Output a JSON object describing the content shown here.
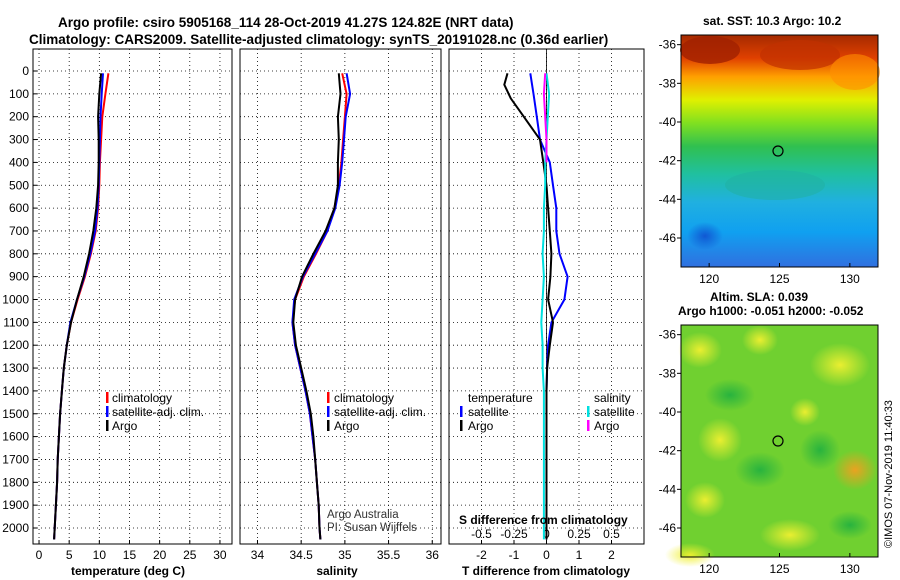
{
  "header": {
    "title_line1": "Argo profile: csiro 5905168_114 28-Oct-2019 41.27S 124.82E (NRT data)",
    "title_line2": "Climatology: CARS2009. Satellite-adjusted climatology: synTS_20191028.nc (0.36d earlier)"
  },
  "colors": {
    "climatology": "#ff0000",
    "satellite": "#0000ff",
    "argo": "#000000",
    "sat_salinity": "#00e0e0",
    "argo_salinity": "#ff00ff"
  },
  "chart_data": [
    {
      "id": "temperature",
      "type": "line",
      "xlabel": "temperature (deg C)",
      "ylabel": "",
      "xlim": [
        -1,
        32
      ],
      "ylim": [
        2070,
        0
      ],
      "xticks": [
        0,
        5,
        10,
        15,
        20,
        25,
        30
      ],
      "yticks": [
        0,
        100,
        200,
        300,
        400,
        500,
        600,
        700,
        800,
        900,
        1000,
        1100,
        1200,
        1300,
        1400,
        1500,
        1600,
        1700,
        1800,
        1900,
        2000
      ],
      "legend": [
        "climatology",
        "satellite-adj. clim.",
        "Argo"
      ],
      "legend_position": "lower-right",
      "series": [
        {
          "name": "climatology",
          "color": "#ff0000",
          "points": [
            [
              11.5,
              10
            ],
            [
              11.0,
              100
            ],
            [
              10.5,
              200
            ],
            [
              10.3,
              300
            ],
            [
              10.1,
              400
            ],
            [
              10.0,
              500
            ],
            [
              9.8,
              600
            ],
            [
              9.4,
              700
            ],
            [
              8.6,
              800
            ],
            [
              7.6,
              900
            ],
            [
              6.4,
              1000
            ],
            [
              5.3,
              1100
            ],
            [
              4.6,
              1200
            ],
            [
              4.1,
              1300
            ],
            [
              3.8,
              1400
            ],
            [
              3.5,
              1500
            ],
            [
              3.3,
              1600
            ],
            [
              3.1,
              1700
            ],
            [
              3.0,
              1800
            ],
            [
              2.8,
              1900
            ],
            [
              2.6,
              2000
            ],
            [
              2.5,
              2050
            ]
          ]
        },
        {
          "name": "satellite-adj. clim.",
          "color": "#0000ff",
          "points": [
            [
              10.6,
              10
            ],
            [
              10.4,
              100
            ],
            [
              10.2,
              200
            ],
            [
              10.1,
              300
            ],
            [
              10.0,
              400
            ],
            [
              9.9,
              500
            ],
            [
              9.7,
              600
            ],
            [
              9.3,
              700
            ],
            [
              8.5,
              800
            ],
            [
              7.5,
              900
            ],
            [
              6.3,
              1000
            ],
            [
              5.2,
              1100
            ],
            [
              4.6,
              1200
            ],
            [
              4.1,
              1300
            ],
            [
              3.8,
              1400
            ],
            [
              3.5,
              1500
            ],
            [
              3.3,
              1600
            ],
            [
              3.1,
              1700
            ],
            [
              3.0,
              1800
            ],
            [
              2.8,
              1900
            ],
            [
              2.6,
              2000
            ],
            [
              2.5,
              2050
            ]
          ]
        },
        {
          "name": "Argo",
          "color": "#000000",
          "points": [
            [
              10.3,
              10
            ],
            [
              10.0,
              100
            ],
            [
              9.8,
              200
            ],
            [
              9.9,
              300
            ],
            [
              9.9,
              400
            ],
            [
              9.8,
              500
            ],
            [
              9.5,
              600
            ],
            [
              9.0,
              700
            ],
            [
              8.3,
              800
            ],
            [
              7.4,
              900
            ],
            [
              6.3,
              1000
            ],
            [
              5.3,
              1100
            ],
            [
              4.6,
              1200
            ],
            [
              4.1,
              1300
            ],
            [
              3.8,
              1400
            ],
            [
              3.5,
              1500
            ],
            [
              3.3,
              1600
            ],
            [
              3.1,
              1700
            ],
            [
              3.0,
              1800
            ],
            [
              2.8,
              1900
            ],
            [
              2.6,
              2000
            ],
            [
              2.5,
              2050
            ]
          ]
        }
      ]
    },
    {
      "id": "salinity",
      "type": "line",
      "xlabel": "salinity",
      "xlim": [
        33.8,
        36.1
      ],
      "ylim": [
        2070,
        0
      ],
      "xticks": [
        34,
        34.5,
        35,
        35.5,
        36
      ],
      "legend": [
        "climatology",
        "satellite-adj. clim.",
        "Argo"
      ],
      "legend_position": "lower-right",
      "annotations": [
        "Argo Australia",
        "PI: Susan Wijffels"
      ],
      "series": [
        {
          "name": "climatology",
          "color": "#ff0000",
          "points": [
            [
              34.97,
              10
            ],
            [
              35.02,
              100
            ],
            [
              35.0,
              200
            ],
            [
              34.98,
              300
            ],
            [
              34.96,
              400
            ],
            [
              34.93,
              500
            ],
            [
              34.88,
              600
            ],
            [
              34.8,
              700
            ],
            [
              34.67,
              800
            ],
            [
              34.53,
              900
            ],
            [
              34.43,
              1000
            ],
            [
              34.4,
              1100
            ],
            [
              34.43,
              1200
            ],
            [
              34.49,
              1300
            ],
            [
              34.55,
              1400
            ],
            [
              34.6,
              1500
            ],
            [
              34.63,
              1600
            ],
            [
              34.66,
              1700
            ],
            [
              34.68,
              1800
            ],
            [
              34.7,
              1900
            ],
            [
              34.71,
              2000
            ],
            [
              34.72,
              2050
            ]
          ]
        },
        {
          "name": "satellite-adj. clim.",
          "color": "#0000ff",
          "points": [
            [
              35.02,
              10
            ],
            [
              35.06,
              100
            ],
            [
              35.01,
              200
            ],
            [
              34.99,
              300
            ],
            [
              34.97,
              400
            ],
            [
              34.94,
              500
            ],
            [
              34.89,
              600
            ],
            [
              34.8,
              700
            ],
            [
              34.66,
              800
            ],
            [
              34.52,
              900
            ],
            [
              34.42,
              1000
            ],
            [
              34.4,
              1100
            ],
            [
              34.43,
              1200
            ],
            [
              34.49,
              1300
            ],
            [
              34.55,
              1400
            ],
            [
              34.6,
              1500
            ],
            [
              34.63,
              1600
            ],
            [
              34.66,
              1700
            ],
            [
              34.68,
              1800
            ],
            [
              34.7,
              1900
            ],
            [
              34.71,
              2000
            ],
            [
              34.72,
              2050
            ]
          ]
        },
        {
          "name": "Argo",
          "color": "#000000",
          "points": [
            [
              34.93,
              10
            ],
            [
              34.95,
              100
            ],
            [
              34.92,
              200
            ],
            [
              34.93,
              300
            ],
            [
              34.92,
              400
            ],
            [
              34.92,
              500
            ],
            [
              34.88,
              600
            ],
            [
              34.78,
              700
            ],
            [
              34.64,
              800
            ],
            [
              34.51,
              900
            ],
            [
              34.43,
              1000
            ],
            [
              34.41,
              1100
            ],
            [
              34.44,
              1200
            ],
            [
              34.5,
              1300
            ],
            [
              34.56,
              1400
            ],
            [
              34.61,
              1500
            ],
            [
              34.64,
              1600
            ],
            [
              34.66,
              1700
            ],
            [
              34.68,
              1800
            ],
            [
              34.7,
              1900
            ],
            [
              34.71,
              2000
            ],
            [
              34.72,
              2050
            ]
          ]
        }
      ]
    },
    {
      "id": "difference",
      "type": "line",
      "xlabel": "T difference from climatology",
      "xlim": [
        -3,
        3
      ],
      "ylim": [
        2070,
        0
      ],
      "xticks": [
        -2,
        -1,
        0,
        1,
        2
      ],
      "xticks_top_label": "S difference from climatology",
      "xticks_top": [
        "-0.5",
        "-0.25",
        "0",
        "0.25",
        "0.5"
      ],
      "legend_temperature": {
        "title": "temperature",
        "items": [
          "satellite",
          "Argo"
        ]
      },
      "legend_salinity": {
        "title": "salinity",
        "items": [
          "satellite",
          "Argo"
        ]
      },
      "series": [
        {
          "name": "temperature satellite",
          "color": "#0000ff",
          "points": [
            [
              -0.5,
              10
            ],
            [
              -0.4,
              100
            ],
            [
              -0.3,
              200
            ],
            [
              -0.2,
              300
            ],
            [
              0.1,
              400
            ],
            [
              0.2,
              500
            ],
            [
              0.3,
              600
            ],
            [
              0.3,
              700
            ],
            [
              0.4,
              800
            ],
            [
              0.65,
              900
            ],
            [
              0.55,
              1000
            ],
            [
              0.15,
              1100
            ],
            [
              0.05,
              1200
            ],
            [
              0.02,
              1300
            ],
            [
              0,
              1400
            ],
            [
              0,
              1500
            ],
            [
              0,
              1600
            ],
            [
              0,
              1700
            ],
            [
              0,
              1800
            ],
            [
              0,
              1900
            ],
            [
              0,
              2000
            ],
            [
              0,
              2050
            ]
          ]
        },
        {
          "name": "temperature Argo",
          "color": "#000000",
          "points": [
            [
              -1.2,
              10
            ],
            [
              -1.3,
              60
            ],
            [
              -1.1,
              120
            ],
            [
              -0.7,
              200
            ],
            [
              -0.2,
              300
            ],
            [
              -0.1,
              400
            ],
            [
              0,
              500
            ],
            [
              0.05,
              600
            ],
            [
              0.1,
              700
            ],
            [
              0.15,
              800
            ],
            [
              0.12,
              900
            ],
            [
              0.05,
              1000
            ],
            [
              0.2,
              1100
            ],
            [
              0.1,
              1200
            ],
            [
              0.02,
              1300
            ],
            [
              0,
              1400
            ],
            [
              0,
              1500
            ],
            [
              0,
              1600
            ],
            [
              0,
              1700
            ],
            [
              0,
              1800
            ],
            [
              0,
              1900
            ],
            [
              0,
              2000
            ],
            [
              0,
              2050
            ]
          ]
        },
        {
          "name": "salinity satellite",
          "color": "#00e0e0",
          "points": [
            [
              0.0,
              10
            ],
            [
              0.02,
              100
            ],
            [
              0.01,
              200
            ],
            [
              0.0,
              300
            ],
            [
              -0.01,
              400
            ],
            [
              -0.01,
              500
            ],
            [
              -0.02,
              600
            ],
            [
              -0.02,
              700
            ],
            [
              -0.03,
              800
            ],
            [
              -0.02,
              900
            ],
            [
              -0.03,
              1000
            ],
            [
              -0.04,
              1100
            ],
            [
              -0.03,
              1200
            ],
            [
              -0.03,
              1300
            ],
            [
              -0.02,
              1400
            ],
            [
              -0.02,
              1500
            ],
            [
              -0.02,
              1600
            ],
            [
              -0.02,
              1700
            ],
            [
              -0.02,
              1800
            ],
            [
              -0.02,
              1900
            ],
            [
              -0.02,
              2000
            ],
            [
              -0.02,
              2050
            ]
          ]
        },
        {
          "name": "salinity Argo",
          "color": "#ff00ff",
          "points": [
            [
              -0.01,
              10
            ],
            [
              -0.02,
              100
            ],
            [
              -0.01,
              200
            ],
            [
              0.0,
              300
            ],
            [
              0.0,
              400
            ]
          ]
        }
      ]
    },
    {
      "id": "sst-map",
      "type": "heatmap",
      "title": "sat. SST: 10.3 Argo: 10.2",
      "xticks": [
        120,
        125,
        130
      ],
      "yticks": [
        -36,
        -38,
        -40,
        -42,
        -44,
        -46
      ],
      "xlim": [
        118,
        132
      ],
      "ylim": [
        -47.5,
        -35.5
      ],
      "marker": {
        "lon": 124.82,
        "lat": -41.27
      }
    },
    {
      "id": "sla-map",
      "type": "heatmap",
      "title": "Altim. SLA: 0.039",
      "subtitle": "Argo h1000: -0.051 h2000: -0.052",
      "xticks": [
        120,
        125,
        130
      ],
      "yticks": [
        -36,
        -38,
        -40,
        -42,
        -44,
        -46
      ],
      "xlim": [
        118,
        132
      ],
      "ylim": [
        -47.5,
        -35.5
      ],
      "marker": {
        "lon": 124.82,
        "lat": -41.27
      }
    }
  ],
  "footer": {
    "stamp": "©IMOS 07-Nov-2019 11:40:33"
  }
}
